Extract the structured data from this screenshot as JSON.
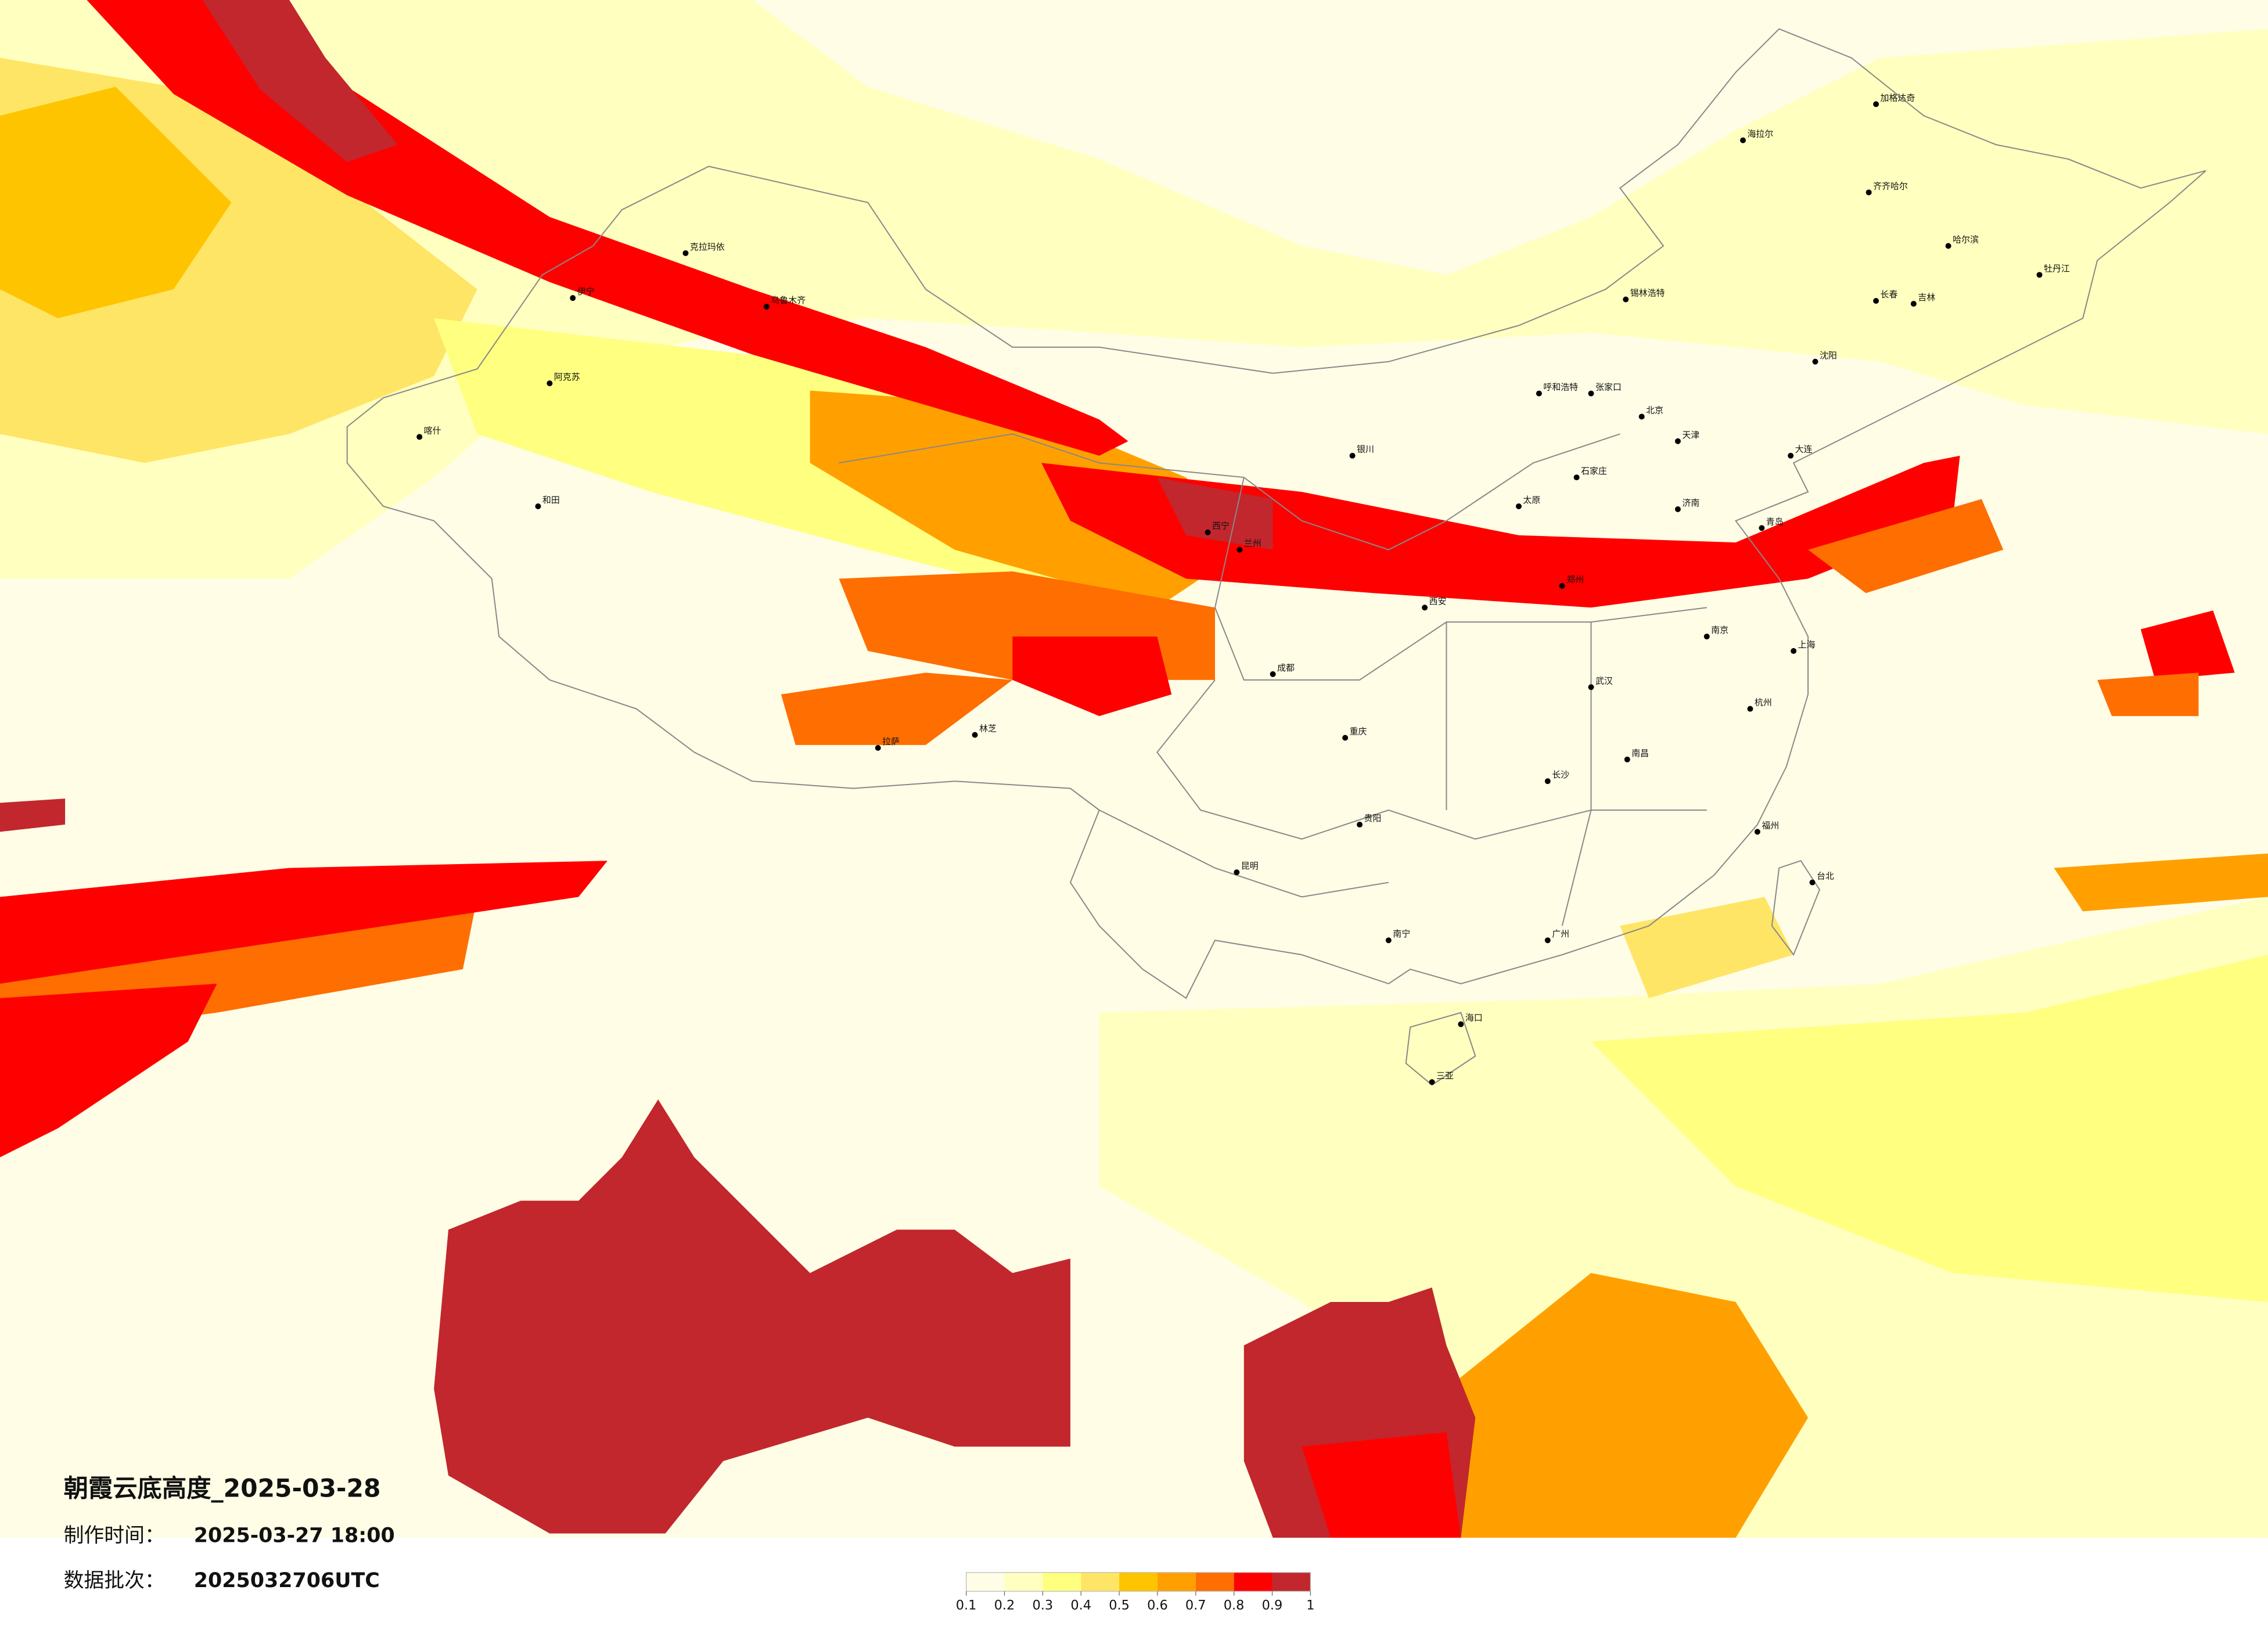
{
  "title": "朝霞云底高度_2025-03-28",
  "made_time": {
    "label": "制作时间：",
    "value": "2025-03-27 18:00"
  },
  "batch": {
    "label": "数据批次：",
    "value": "2025032706UTC"
  },
  "legend": {
    "ticks": [
      0.1,
      0.2,
      0.3,
      0.4,
      0.5,
      0.6,
      0.7,
      0.8,
      0.9,
      1
    ],
    "colors": [
      "#fffde6",
      "#ffffbf",
      "#ffff80",
      "#ffe566",
      "#ffc400",
      "#ffa000",
      "#ff6e00",
      "#ff0000",
      "#c1272d"
    ]
  },
  "cities": [
    "海拉尔",
    "加格达奇",
    "齐齐哈尔",
    "哈尔滨",
    "长春",
    "吉林",
    "牡丹江",
    "锡林浩特",
    "呼和浩特",
    "张家口",
    "北京",
    "天津",
    "石家庄",
    "太原",
    "济南",
    "青岛",
    "郑州",
    "西安",
    "兰州",
    "西宁",
    "银川",
    "乌鲁木齐",
    "喀什",
    "和田",
    "阿克苏",
    "伊宁",
    "克拉玛依",
    "拉萨",
    "林芝",
    "成都",
    "重庆",
    "贵阳",
    "昆明",
    "南宁",
    "广州",
    "武汉",
    "长沙",
    "南昌",
    "南京",
    "上海",
    "杭州",
    "福州",
    "台北",
    "海口",
    "三亚",
    "沈阳",
    "大连"
  ]
}
